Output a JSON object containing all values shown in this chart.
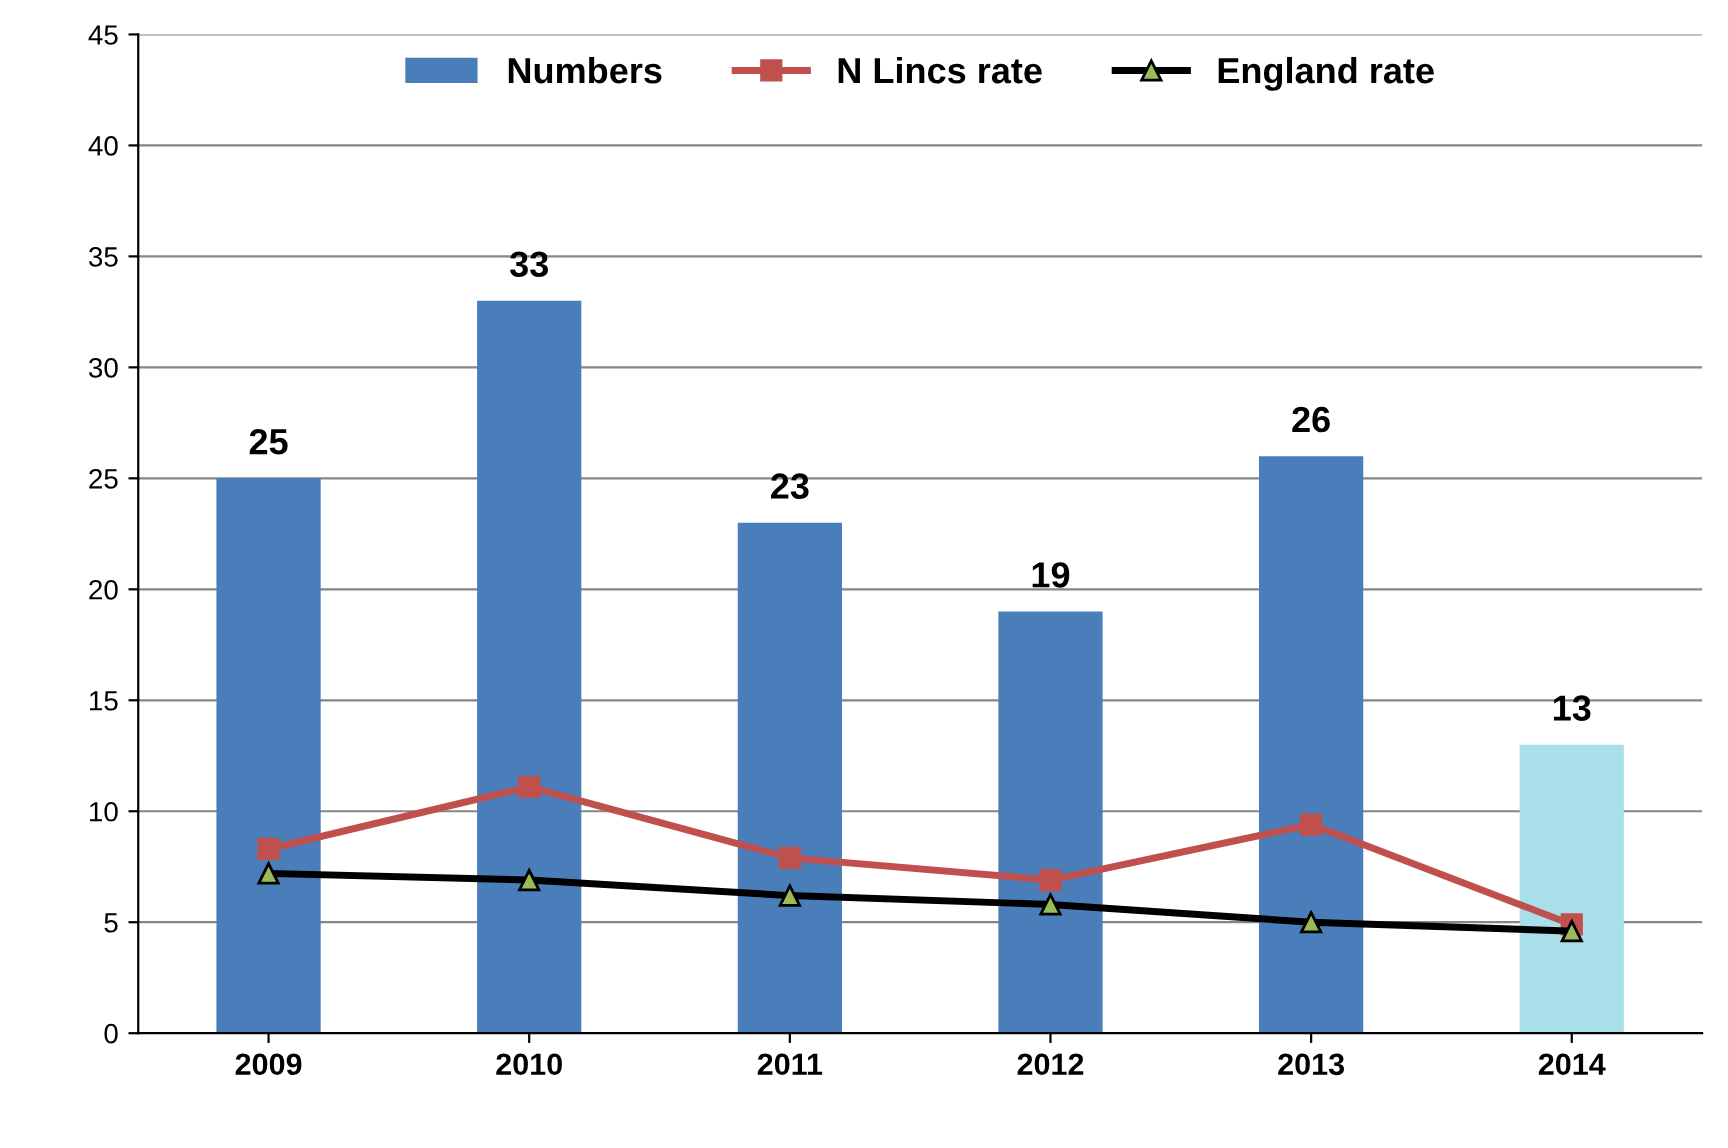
{
  "chart_data": {
    "type": "bar",
    "categories": [
      "2009",
      "2010",
      "2011",
      "2012",
      "2013",
      "2014"
    ],
    "series": [
      {
        "name": "Numbers",
        "color": "#4a7ebb",
        "colors": [
          "#4a7ebb",
          "#4a7ebb",
          "#4a7ebb",
          "#4a7ebb",
          "#4a7ebb",
          "#a9dfe8"
        ],
        "values": [
          25,
          33,
          23,
          19,
          26,
          13
        ],
        "value_labels": [
          "25",
          "33",
          "23",
          "19",
          "26",
          "13"
        ]
      },
      {
        "name": "N Lincs rate",
        "type": "line",
        "color": "#c0504d",
        "marker": "square",
        "values": [
          8.3,
          11.1,
          7.9,
          6.9,
          9.4,
          4.9
        ]
      },
      {
        "name": "England rate",
        "type": "line",
        "color": "#000000",
        "marker": "triangle",
        "values": [
          7.2,
          6.9,
          6.2,
          5.8,
          5.0,
          4.6
        ]
      }
    ],
    "ylim": [
      0,
      45
    ],
    "yticks": [
      0,
      5,
      10,
      15,
      20,
      25,
      30,
      35,
      40,
      45
    ],
    "grid": "y",
    "legend": "top"
  }
}
